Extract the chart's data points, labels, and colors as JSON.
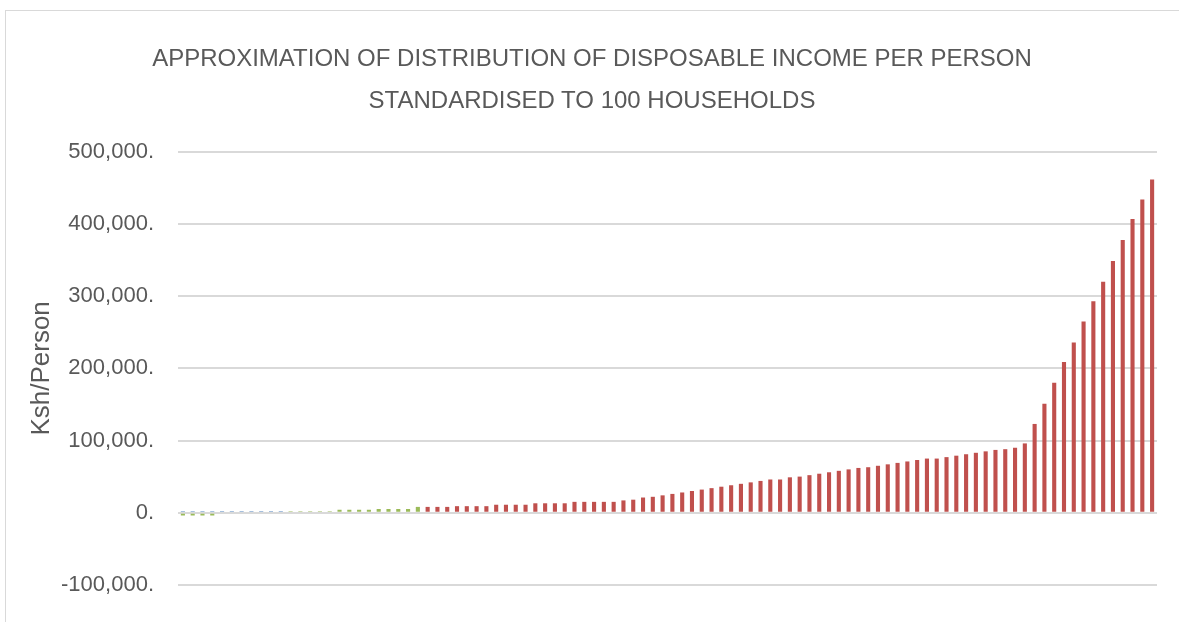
{
  "chart_data": {
    "type": "bar",
    "title": "APPROXIMATION OF DISTRIBUTION OF DISPOSABLE INCOME PER PERSON STANDARDISED TO 100 HOUSEHOLDS",
    "ylabel": "Ksh/Person",
    "categories": [
      null,
      null,
      null,
      null,
      null,
      null,
      null,
      null,
      null,
      null,
      null,
      null,
      null,
      null,
      null,
      null,
      null,
      null,
      null,
      null,
      null,
      null,
      null,
      null,
      null,
      null,
      null,
      null,
      null,
      null,
      null,
      null,
      null,
      null,
      null,
      null,
      null,
      null,
      null,
      null,
      null,
      null,
      null,
      null,
      null,
      null,
      null,
      null,
      null,
      null,
      null,
      null,
      null,
      null,
      null,
      null,
      null,
      null,
      null,
      null,
      null,
      null,
      null,
      null,
      null,
      null,
      null,
      null,
      null,
      null,
      null,
      null,
      null,
      null,
      null,
      null,
      null,
      null,
      null,
      null,
      null,
      null,
      null,
      null,
      null,
      null,
      null,
      null,
      null,
      null,
      null,
      null,
      null,
      null,
      null,
      null,
      null,
      null,
      null,
      null
    ],
    "stacked": true,
    "series": [
      {
        "color": "#4f81bd",
        "values": [
          2000,
          2000,
          2000,
          2000,
          2000,
          2000,
          2000,
          2000,
          2000,
          2000,
          2000,
          null,
          null,
          null,
          null,
          null,
          null,
          null,
          null,
          null,
          null,
          null,
          null,
          null,
          null,
          null,
          null,
          null,
          null,
          null,
          null,
          null,
          null,
          null,
          null,
          null,
          null,
          null,
          null,
          null,
          null,
          null,
          null,
          null,
          null,
          null,
          null,
          null,
          null,
          null,
          null,
          null,
          null,
          null,
          null,
          null,
          null,
          null,
          null,
          null,
          null,
          null,
          null,
          null,
          null,
          null,
          null,
          null,
          null,
          null,
          null,
          null,
          null,
          null,
          null,
          null,
          null,
          null,
          null,
          null,
          null,
          null,
          null,
          null,
          null,
          null,
          null,
          null,
          null,
          null,
          null,
          null,
          null,
          null,
          null,
          null,
          null,
          null,
          null,
          null
        ]
      },
      {
        "color": "#9bbb59",
        "values": [
          -4000,
          -4000,
          -4000,
          -4000,
          null,
          null,
          null,
          null,
          null,
          null,
          null,
          2000,
          2000,
          2000,
          2000,
          2000,
          4000,
          4000,
          4000,
          4000,
          5000,
          5000,
          5000,
          5000,
          8000,
          null,
          null,
          null,
          null,
          null,
          null,
          null,
          null,
          null,
          null,
          null,
          null,
          null,
          null,
          null,
          null,
          null,
          null,
          null,
          null,
          null,
          null,
          null,
          null,
          null,
          null,
          null,
          null,
          null,
          null,
          null,
          null,
          null,
          null,
          null,
          null,
          null,
          null,
          null,
          null,
          null,
          null,
          null,
          null,
          null,
          null,
          null,
          null,
          null,
          null,
          null,
          null,
          null,
          null,
          null,
          null,
          null,
          null,
          null,
          null,
          null,
          null,
          null,
          null,
          null,
          null,
          null,
          null,
          null,
          null,
          null,
          null,
          null,
          null,
          null
        ]
      },
      {
        "color": "#c0504d",
        "values": [
          null,
          null,
          null,
          null,
          null,
          null,
          null,
          null,
          null,
          null,
          null,
          null,
          null,
          null,
          null,
          null,
          null,
          null,
          null,
          null,
          null,
          null,
          null,
          null,
          null,
          8000,
          8000,
          8000,
          9000,
          9000,
          9000,
          9000,
          11000,
          11000,
          11000,
          11000,
          13000,
          13000,
          13000,
          13000,
          15000,
          15000,
          15000,
          15000,
          15000,
          17000,
          18000,
          21000,
          22000,
          24000,
          26000,
          28000,
          30000,
          32000,
          34000,
          36000,
          38000,
          40000,
          42000,
          44000,
          46000,
          46000,
          49000,
          50000,
          52000,
          54000,
          56000,
          58000,
          60000,
          62000,
          63000,
          65000,
          67000,
          69000,
          71000,
          73000,
          75000,
          75000,
          77000,
          79000,
          81000,
          83000,
          85000,
          87000,
          88000,
          90000,
          96000,
          123000,
          151000,
          180000,
          209000,
          236000,
          265000,
          293000,
          320000,
          349000,
          378000,
          407000,
          434000,
          462000
        ]
      }
    ],
    "ylim": [
      -100000,
      500000
    ],
    "yticks": [
      {
        "value": -100000,
        "label": "-100,000."
      },
      {
        "value": 0,
        "label": "0."
      },
      {
        "value": 100000,
        "label": "100,000."
      },
      {
        "value": 200000,
        "label": "200,000."
      },
      {
        "value": 300000,
        "label": "300,000."
      },
      {
        "value": 400000,
        "label": "400,000."
      },
      {
        "value": 500000,
        "label": "500,000."
      }
    ],
    "grid": "y",
    "tick_labels": "y"
  }
}
